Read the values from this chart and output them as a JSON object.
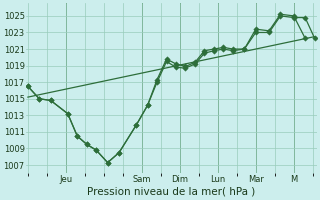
{
  "bg_color": "#cceeed",
  "grid_color": "#99ccbb",
  "line_color": "#2d6e3a",
  "xlabel": "Pression niveau de la mer( hPa )",
  "ylim": [
    1006.0,
    1026.5
  ],
  "yticks": [
    1007,
    1009,
    1011,
    1013,
    1015,
    1017,
    1019,
    1021,
    1023,
    1025
  ],
  "vline_positions": [
    1.0,
    3.0,
    4.0,
    5.0,
    6.0,
    7.0
  ],
  "xtick_positions": [
    1.0,
    3.0,
    4.0,
    5.0,
    6.0,
    7.0
  ],
  "xtick_labels": [
    "Jeu",
    "Sam",
    "Dim",
    "Lun",
    "Mar",
    "M"
  ],
  "xlim": [
    -0.05,
    7.6
  ],
  "trend_x": [
    0.0,
    7.55
  ],
  "trend_y": [
    1015.2,
    1022.5
  ],
  "line1_x": [
    0.0,
    0.3,
    0.6,
    1.05,
    1.3,
    1.55,
    1.8,
    2.1,
    2.4,
    2.85,
    3.15,
    3.4,
    3.65,
    3.9,
    4.15,
    4.4,
    4.65,
    4.9,
    5.15,
    5.4,
    5.7,
    6.0,
    6.35,
    6.65,
    7.0,
    7.3
  ],
  "line1_y": [
    1016.5,
    1015.0,
    1014.8,
    1013.2,
    1010.5,
    1009.5,
    1008.8,
    1007.3,
    1008.5,
    1011.8,
    1014.2,
    1017.3,
    1019.8,
    1019.2,
    1018.9,
    1019.4,
    1020.8,
    1021.0,
    1021.2,
    1021.0,
    1021.0,
    1023.4,
    1023.2,
    1025.2,
    1025.0,
    1022.3
  ],
  "line2_x": [
    0.0,
    0.3,
    0.6,
    1.05,
    1.3,
    1.55,
    1.8,
    2.1,
    2.4,
    2.85,
    3.15,
    3.4,
    3.65,
    3.9,
    4.15,
    4.4,
    4.65,
    4.9,
    5.15,
    5.4,
    5.7,
    6.0,
    6.35,
    6.65,
    7.0,
    7.3,
    7.55
  ],
  "line2_y": [
    1016.5,
    1015.0,
    1014.8,
    1013.2,
    1010.5,
    1009.5,
    1008.8,
    1007.3,
    1008.5,
    1011.8,
    1014.2,
    1017.0,
    1019.5,
    1018.8,
    1018.7,
    1019.2,
    1020.5,
    1020.8,
    1021.0,
    1020.8,
    1021.0,
    1023.0,
    1023.0,
    1025.0,
    1024.8,
    1024.8,
    1022.3
  ]
}
